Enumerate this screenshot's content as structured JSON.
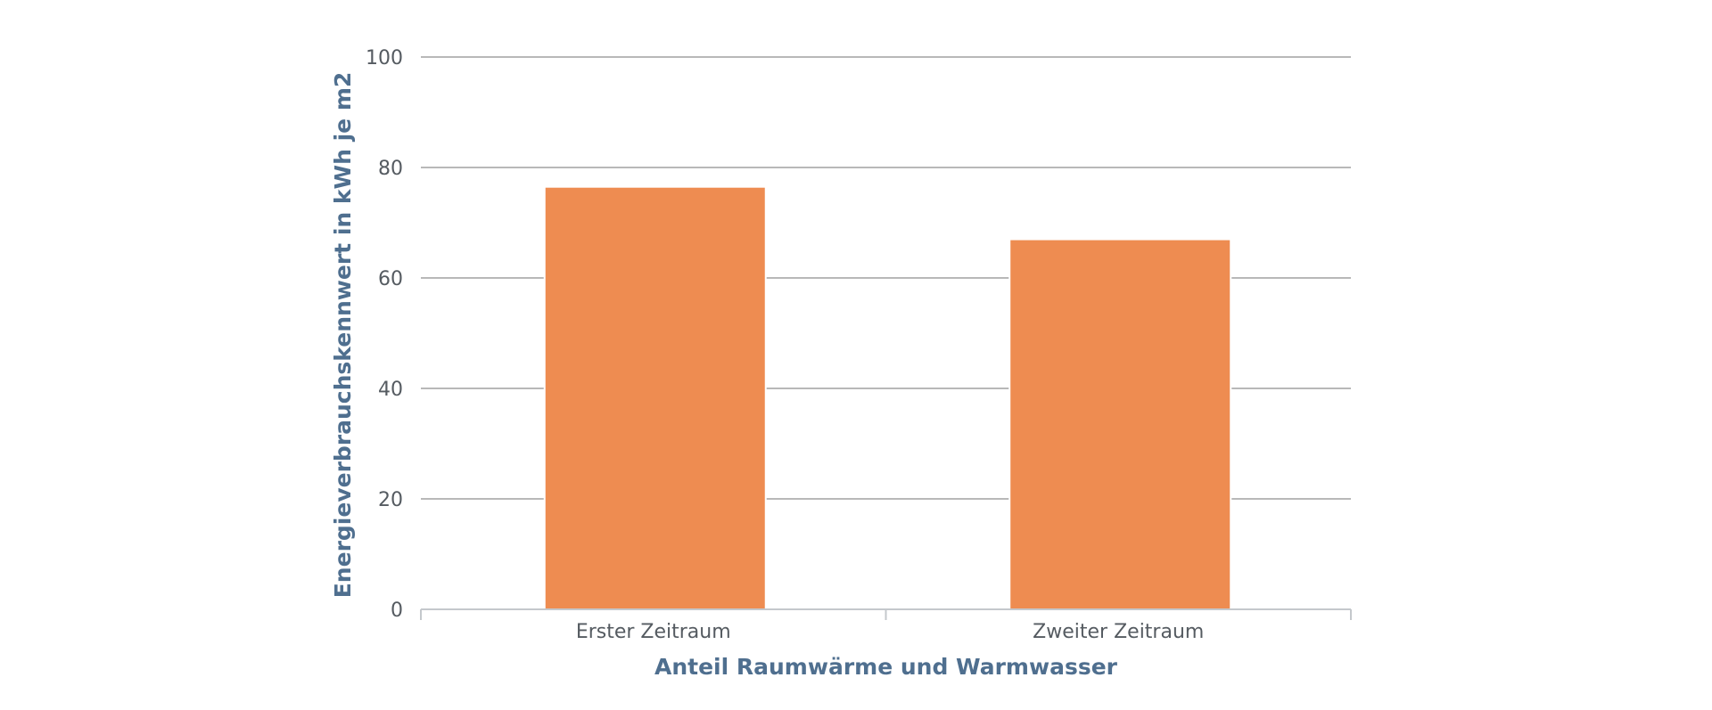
{
  "chart_data": {
    "type": "bar",
    "categories": [
      "Erster Zeitraum",
      "Zweiter Zeitraum"
    ],
    "values": [
      76.5,
      67
    ],
    "title": "",
    "xlabel": "Anteil Raumwärme und Warmwasser",
    "ylabel": "Energieverbrauchskennwert in kWh je m2",
    "ylim": [
      0,
      100
    ],
    "yticks": [
      0,
      20,
      40,
      60,
      80,
      100
    ],
    "grid": true,
    "legend": "none",
    "colors": {
      "bar": "#ee8c51",
      "axis_title": "#4f6f8f",
      "tick_label": "#555b61",
      "grid": "#b8b8b8"
    }
  }
}
